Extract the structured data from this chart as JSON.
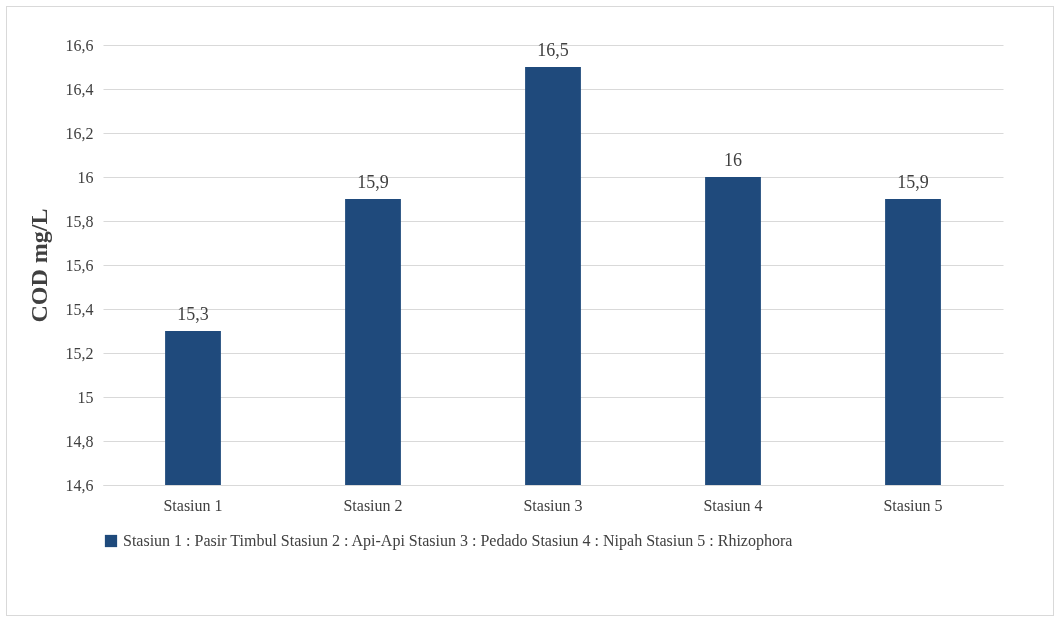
{
  "chart_data": {
    "type": "bar",
    "ylabel": "COD mg/L",
    "categories": [
      "Stasiun 1",
      "Stasiun 2",
      "Stasiun 3",
      "Stasiun 4",
      "Stasiun 5"
    ],
    "series": [
      {
        "name": "Stasiun 1 : Pasir Timbul Stasiun 2 : Api-Api Stasiun 3 : Pedado Stasiun 4 : Nipah Stasiun 5 : Rhizophora",
        "color": "#1f4a7c",
        "values": [
          15.3,
          15.9,
          16.5,
          16,
          15.9
        ],
        "value_labels": [
          "15,3",
          "15,9",
          "16,5",
          "16",
          "15,9"
        ]
      }
    ],
    "ylim": [
      14.6,
      16.6
    ],
    "yticks": [
      {
        "value": 14.6,
        "label": "14,6"
      },
      {
        "value": 14.8,
        "label": "14,8"
      },
      15,
      {
        "value": 15.2,
        "label": "15,2"
      },
      {
        "value": 15.4,
        "label": "15,4"
      },
      {
        "value": 15.6,
        "label": "15,6"
      },
      {
        "value": 15.8,
        "label": "15,8"
      },
      16,
      {
        "value": 16.2,
        "label": "16,2"
      },
      {
        "value": 16.4,
        "label": "16,4"
      },
      {
        "value": 16.6,
        "label": "16,6"
      }
    ],
    "grid": "y",
    "legend": "bottom"
  }
}
